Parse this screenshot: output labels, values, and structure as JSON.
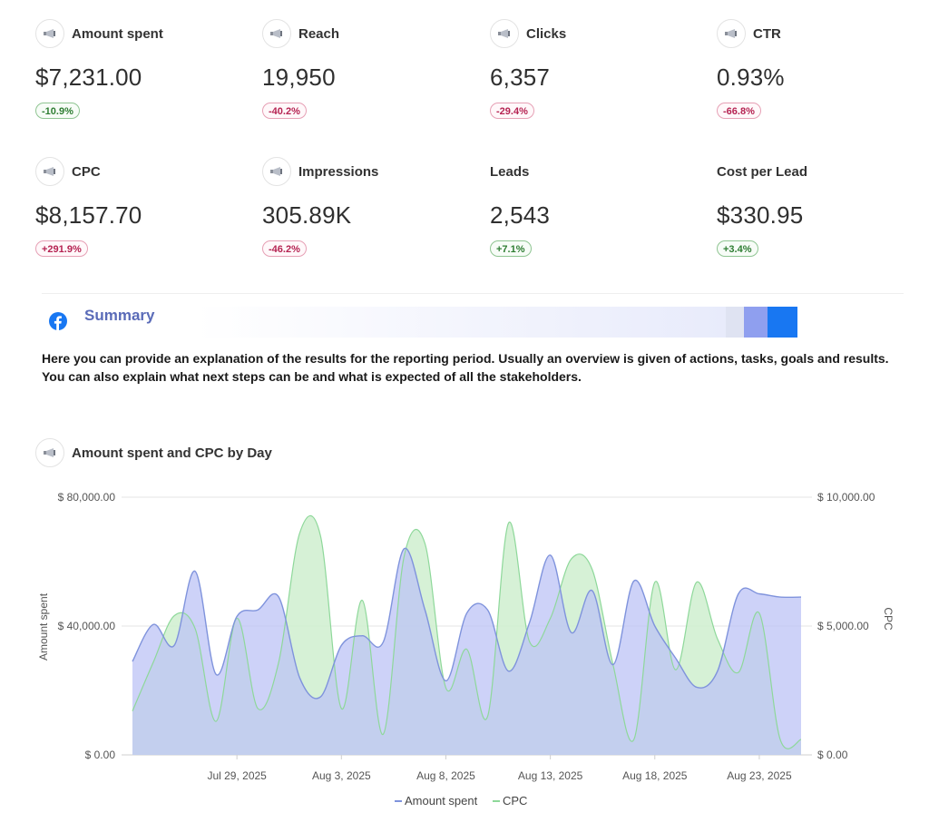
{
  "kpis": [
    {
      "title": "Amount spent",
      "value": "$7,231.00",
      "change": "-10.9%",
      "trend": "good",
      "icon": "megaphone-icon"
    },
    {
      "title": "Reach",
      "value": "19,950",
      "change": "-40.2%",
      "trend": "bad",
      "icon": "megaphone-icon"
    },
    {
      "title": "Clicks",
      "value": "6,357",
      "change": "-29.4%",
      "trend": "bad",
      "icon": "megaphone-icon"
    },
    {
      "title": "CTR",
      "value": "0.93%",
      "change": "-66.8%",
      "trend": "bad",
      "icon": "megaphone-icon"
    },
    {
      "title": "CPC",
      "value": "$8,157.70",
      "change": "+291.9%",
      "trend": "bad",
      "icon": "megaphone-icon"
    },
    {
      "title": "Impressions",
      "value": "305.89K",
      "change": "-46.2%",
      "trend": "bad",
      "icon": "megaphone-icon"
    },
    {
      "title": "Leads",
      "value": "2,543",
      "change": "+7.1%",
      "trend": "good",
      "icon": null
    },
    {
      "title": "Cost per Lead",
      "value": "$330.95",
      "change": "+3.4%",
      "trend": "good",
      "icon": null
    }
  ],
  "summary": {
    "title": "Summary",
    "icon": "facebook-icon",
    "text": "Here you can provide an explanation of the results for the reporting period. Usually an overview is given of actions, tasks, goals and results. You can also explain what next steps can be and what is expected of all the stakeholders."
  },
  "chart_section": {
    "title": "Amount spent and CPC by Day",
    "icon": "megaphone-icon"
  },
  "colors": {
    "amount_fill": "#bcc3f6",
    "amount_line": "#7f93dc",
    "cpc_fill": "#cfeecf",
    "cpc_line": "#8ed89a",
    "good": "#2e7d32",
    "bad": "#b52352",
    "facebook": "#1877f2"
  },
  "chart_data": {
    "type": "area",
    "title": "Amount spent and CPC by Day",
    "x": [
      "Jul 24, 2025",
      "Jul 25, 2025",
      "Jul 26, 2025",
      "Jul 27, 2025",
      "Jul 28, 2025",
      "Jul 29, 2025",
      "Jul 30, 2025",
      "Jul 31, 2025",
      "Aug 1, 2025",
      "Aug 2, 2025",
      "Aug 3, 2025",
      "Aug 4, 2025",
      "Aug 5, 2025",
      "Aug 6, 2025",
      "Aug 7, 2025",
      "Aug 8, 2025",
      "Aug 9, 2025",
      "Aug 10, 2025",
      "Aug 11, 2025",
      "Aug 12, 2025",
      "Aug 13, 2025",
      "Aug 14, 2025",
      "Aug 15, 2025",
      "Aug 16, 2025",
      "Aug 17, 2025",
      "Aug 18, 2025",
      "Aug 19, 2025",
      "Aug 20, 2025",
      "Aug 21, 2025",
      "Aug 22, 2025",
      "Aug 23, 2025",
      "Aug 24, 2025",
      "Aug 25, 2025"
    ],
    "x_ticks": [
      "Jul 29, 2025",
      "Aug 3, 2025",
      "Aug 8, 2025",
      "Aug 13, 2025",
      "Aug 18, 2025",
      "Aug 23, 2025"
    ],
    "series": [
      {
        "name": "Amount spent",
        "axis": "left",
        "values": [
          29000,
          40500,
          34000,
          57000,
          25000,
          43000,
          45000,
          49000,
          24000,
          18000,
          34000,
          37000,
          35000,
          64000,
          45000,
          23000,
          44000,
          45000,
          26000,
          41000,
          62000,
          38000,
          51000,
          28000,
          54000,
          40000,
          30000,
          21000,
          26000,
          50000,
          50000,
          49000,
          49000
        ]
      },
      {
        "name": "CPC",
        "axis": "right",
        "values": [
          1700,
          3600,
          5400,
          4900,
          1300,
          5300,
          1800,
          3600,
          8600,
          8500,
          1800,
          6000,
          800,
          7700,
          8200,
          2600,
          4100,
          1500,
          9000,
          4400,
          5300,
          7600,
          7200,
          3500,
          600,
          6700,
          3300,
          6700,
          4500,
          3200,
          5500,
          600,
          600
        ]
      }
    ],
    "xlabel": "",
    "ylabel": "Amount spent",
    "y2label": "CPC",
    "ylim": [
      0,
      80000
    ],
    "y2lim": [
      0,
      10000
    ],
    "y_ticks": [
      "$ 0.00",
      "$ 40,000.00",
      "$ 80,000.00"
    ],
    "y2_ticks": [
      "$ 0.00",
      "$ 5,000.00",
      "$ 10,000.00"
    ],
    "legend": [
      "Amount spent",
      "CPC"
    ],
    "legend_position": "bottom",
    "grid": true
  }
}
